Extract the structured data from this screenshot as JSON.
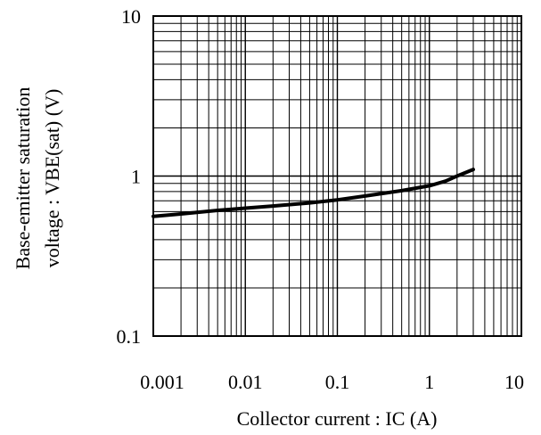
{
  "chart_data": {
    "type": "line",
    "title": "",
    "xlabel": "Collector current : IC (A)",
    "ylabel_lines": [
      "Base-emitter saturation",
      "voltage : VBE(sat) (V)"
    ],
    "x_scale": "log",
    "y_scale": "log",
    "xlim": [
      0.001,
      10
    ],
    "ylim": [
      0.1,
      10
    ],
    "grid": true,
    "x_ticks": [
      {
        "value": 0.001,
        "label": "0.001"
      },
      {
        "value": 0.01,
        "label": "0.01"
      },
      {
        "value": 0.1,
        "label": "0.1"
      },
      {
        "value": 1,
        "label": "1"
      },
      {
        "value": 10,
        "label": "10"
      }
    ],
    "y_ticks": [
      {
        "value": 0.1,
        "label": "0.1"
      },
      {
        "value": 1,
        "label": "1"
      },
      {
        "value": 10,
        "label": "10"
      }
    ],
    "series": [
      {
        "color": "#000000",
        "x": [
          0.001,
          0.002,
          0.005,
          0.01,
          0.02,
          0.05,
          0.1,
          0.2,
          0.5,
          1,
          1.5,
          2,
          3
        ],
        "y": [
          0.56,
          0.58,
          0.61,
          0.63,
          0.65,
          0.68,
          0.71,
          0.75,
          0.81,
          0.87,
          0.93,
          1.0,
          1.1
        ]
      }
    ]
  }
}
